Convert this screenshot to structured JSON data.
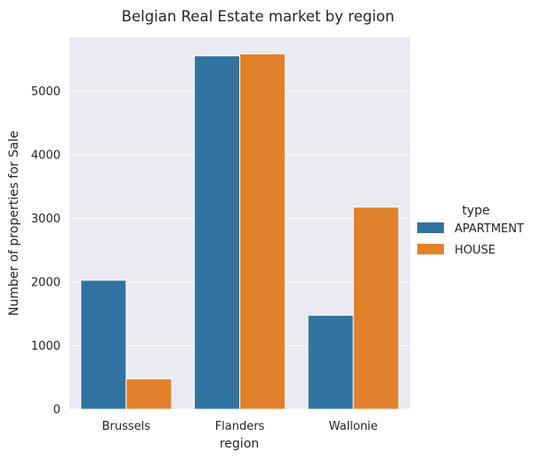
{
  "chart_data": {
    "type": "bar",
    "title": "Belgian Real Estate market by region",
    "xlabel": "region",
    "ylabel": "Number of properties for Sale",
    "categories": [
      "Brussels",
      "Flanders",
      "Wallonie"
    ],
    "series": [
      {
        "name": "APARTMENT",
        "values": [
          2030,
          5560,
          1480
        ],
        "color": "#3274a1"
      },
      {
        "name": "HOUSE",
        "values": [
          480,
          5590,
          3180
        ],
        "color": "#e1812c"
      }
    ],
    "ylim": [
      0,
      5850
    ],
    "yticks": [
      0,
      1000,
      2000,
      3000,
      4000,
      5000
    ],
    "grid": true,
    "background": "#eaeaf2",
    "legend": {
      "title": "type",
      "placement": "right"
    }
  }
}
